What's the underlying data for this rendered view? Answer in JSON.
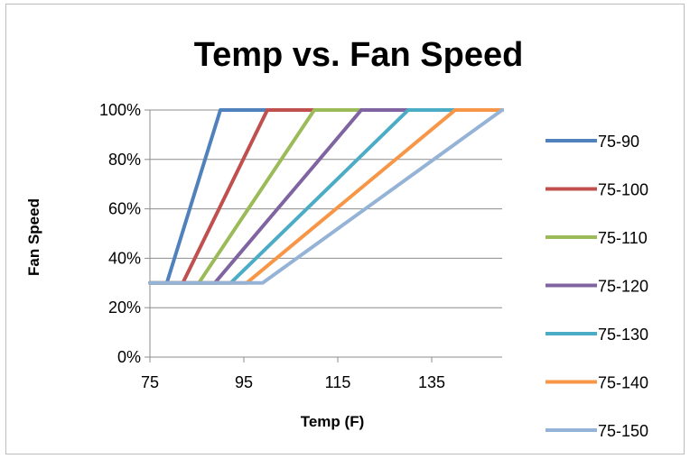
{
  "chart_data": {
    "type": "line",
    "title": "Temp vs. Fan Speed",
    "xlabel": "Temp (F)",
    "ylabel": "Fan Speed",
    "xlim": [
      75,
      150
    ],
    "ylim": [
      0,
      1
    ],
    "x_ticks": [
      "75",
      "95",
      "115",
      "135"
    ],
    "x_tick_values": [
      75,
      95,
      115,
      135
    ],
    "y_ticks": [
      "0%",
      "20%",
      "40%",
      "60%",
      "80%",
      "100%"
    ],
    "y_tick_values": [
      0,
      0.2,
      0.4,
      0.6,
      0.8,
      1.0
    ],
    "grid": "horizontal",
    "legend": "right",
    "series": [
      {
        "name": "75-90",
        "color": "#4f81bd",
        "points": [
          [
            75,
            0.3
          ],
          [
            78.6,
            0.3
          ],
          [
            90,
            1.0
          ],
          [
            150,
            1.0
          ]
        ]
      },
      {
        "name": "75-100",
        "color": "#c0504d",
        "points": [
          [
            75,
            0.3
          ],
          [
            82,
            0.3
          ],
          [
            100,
            1.0
          ],
          [
            150,
            1.0
          ]
        ]
      },
      {
        "name": "75-110",
        "color": "#9bbb59",
        "points": [
          [
            75,
            0.3
          ],
          [
            85.4,
            0.3
          ],
          [
            110,
            1.0
          ],
          [
            150,
            1.0
          ]
        ]
      },
      {
        "name": "75-120",
        "color": "#8064a2",
        "points": [
          [
            75,
            0.3
          ],
          [
            88.8,
            0.3
          ],
          [
            120,
            1.0
          ],
          [
            150,
            1.0
          ]
        ]
      },
      {
        "name": "75-130",
        "color": "#4bacc6",
        "points": [
          [
            75,
            0.3
          ],
          [
            92.2,
            0.3
          ],
          [
            130,
            1.0
          ],
          [
            150,
            1.0
          ]
        ]
      },
      {
        "name": "75-140",
        "color": "#f79646",
        "points": [
          [
            75,
            0.3
          ],
          [
            95.6,
            0.3
          ],
          [
            140,
            1.0
          ],
          [
            150,
            1.0
          ]
        ]
      },
      {
        "name": "75-150",
        "color": "#95b3d7",
        "points": [
          [
            75,
            0.3
          ],
          [
            99,
            0.3
          ],
          [
            150,
            1.0
          ]
        ]
      }
    ]
  }
}
